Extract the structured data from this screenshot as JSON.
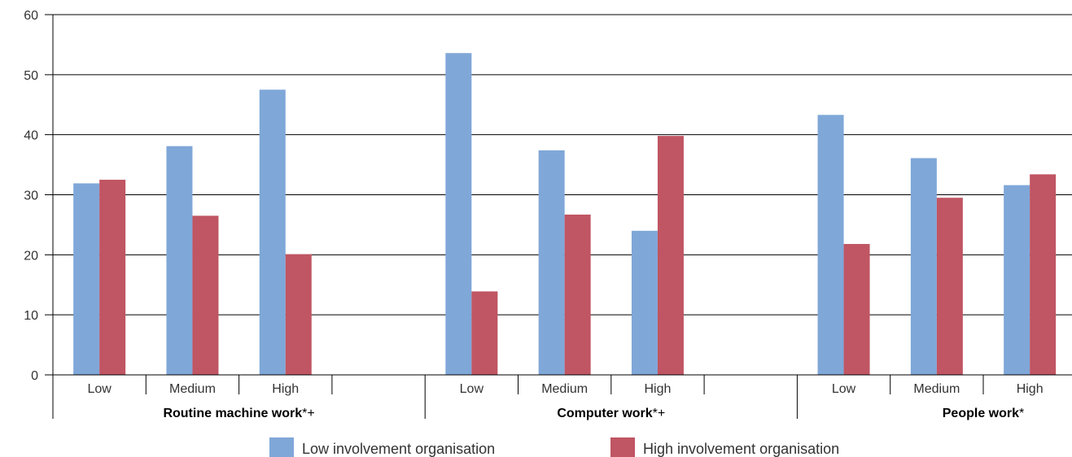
{
  "chart_data": {
    "type": "bar",
    "ylim": [
      0,
      60
    ],
    "yticks": [
      0,
      10,
      20,
      30,
      40,
      50,
      60
    ],
    "grid": true,
    "legend_position": "bottom",
    "colors": {
      "low": "#7FA7D8",
      "high": "#C05563"
    },
    "groups": [
      {
        "label_bold": "Routine machine work",
        "label_suffix": "*+",
        "categories": [
          "Low",
          "Medium",
          "High"
        ]
      },
      {
        "label_bold": "Computer work",
        "label_suffix": "*+",
        "categories": [
          "Low",
          "Medium",
          "High"
        ]
      },
      {
        "label_bold": "People work",
        "label_suffix": "*",
        "categories": [
          "Low",
          "Medium",
          "High"
        ]
      }
    ],
    "series": [
      {
        "name": "Low involvement organisation",
        "color_key": "low",
        "values": [
          [
            31.9,
            38.1,
            47.5
          ],
          [
            53.6,
            37.4,
            24.0
          ],
          [
            43.3,
            36.1,
            31.6
          ]
        ]
      },
      {
        "name": "High involvement organisation",
        "color_key": "high",
        "values": [
          [
            32.5,
            26.5,
            20.1
          ],
          [
            13.9,
            26.7,
            39.8
          ],
          [
            21.8,
            29.5,
            33.4
          ]
        ]
      }
    ]
  }
}
